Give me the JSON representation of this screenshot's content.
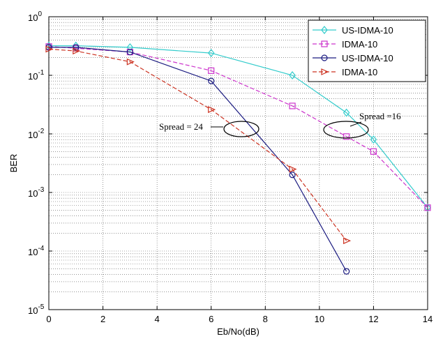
{
  "chart_data": {
    "type": "line",
    "title": "",
    "xlabel": "Eb/No(dB)",
    "ylabel": "BER",
    "xlim": [
      0,
      14
    ],
    "ylim": [
      1e-05,
      1
    ],
    "y_scale": "log",
    "grid": true,
    "legend_position": "top-right",
    "x_ticks": [
      0,
      2,
      4,
      6,
      8,
      10,
      12,
      14
    ],
    "x_tick_labels": [
      "0",
      "2",
      "4",
      "6",
      "8",
      "10",
      "12",
      "14"
    ],
    "y_ticks": [
      1e-05,
      0.0001,
      0.001,
      0.01,
      0.1,
      1
    ],
    "y_tick_labels": [
      {
        "base": "10",
        "exp": "-5"
      },
      {
        "base": "10",
        "exp": "-4"
      },
      {
        "base": "10",
        "exp": "-3"
      },
      {
        "base": "10",
        "exp": "-2"
      },
      {
        "base": "10",
        "exp": "-1"
      },
      {
        "base": "10",
        "exp": "0"
      }
    ],
    "series": [
      {
        "name": "US-IDMA-10",
        "color": "#33cccc",
        "marker": "diamond",
        "dash": "solid",
        "x": [
          0,
          1,
          3,
          6,
          9,
          11,
          12,
          14
        ],
        "y": [
          0.32,
          0.32,
          0.3,
          0.24,
          0.1,
          0.023,
          0.008,
          0.00055
        ]
      },
      {
        "name": "IDMA-10",
        "color": "#cc33cc",
        "marker": "square",
        "dash": "dashed",
        "x": [
          0,
          1,
          3,
          6,
          9,
          11,
          12,
          14
        ],
        "y": [
          0.31,
          0.29,
          0.25,
          0.12,
          0.03,
          0.009,
          0.005,
          0.00055
        ]
      },
      {
        "name": "US-IDMA-10",
        "color": "#1a1a80",
        "marker": "circle",
        "dash": "solid",
        "x": [
          0,
          1,
          3,
          6,
          9,
          11
        ],
        "y": [
          0.3,
          0.3,
          0.25,
          0.08,
          0.002,
          4.5e-05
        ]
      },
      {
        "name": "IDMA-10",
        "color": "#cc3322",
        "marker": "triangle-right",
        "dash": "dashed",
        "x": [
          0,
          1,
          3,
          6,
          9,
          11
        ],
        "y": [
          0.28,
          0.26,
          0.17,
          0.026,
          0.0025,
          0.00015
        ]
      }
    ],
    "annotations": [
      {
        "text": "Spread = 24",
        "x": 7.4,
        "y": 0.013
      },
      {
        "text": "Spread =16",
        "x": 11.4,
        "y": 0.012
      }
    ]
  }
}
